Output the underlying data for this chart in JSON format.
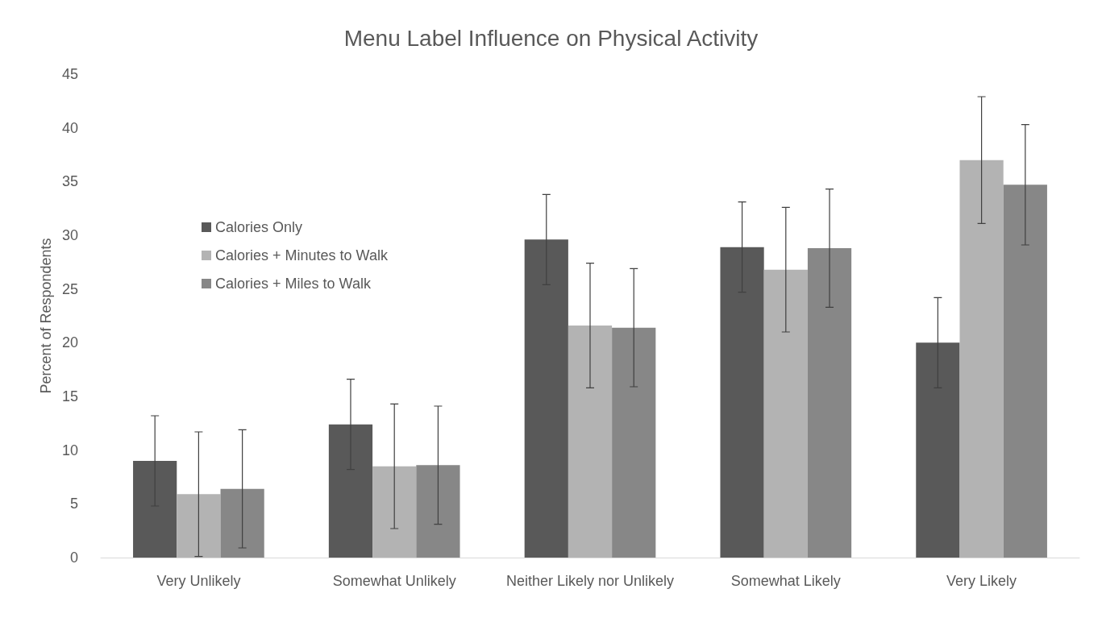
{
  "chart_data": {
    "type": "bar",
    "title": "Menu Label Influence on Physical Activity",
    "ylabel": "Percent of Respondents",
    "categories": [
      "Very Unlikely",
      "Somewhat Unlikely",
      "Neither Likely nor Unlikely",
      "Somewhat Likely",
      "Very Likely"
    ],
    "series": [
      {
        "name": "Calories Only",
        "color": "#595959",
        "values": [
          9.0,
          12.4,
          29.6,
          28.9,
          20.0
        ],
        "errors": [
          4.2,
          4.2,
          4.2,
          4.2,
          4.2
        ]
      },
      {
        "name": "Calories + Minutes to Walk",
        "color": "#b3b3b3",
        "values": [
          5.9,
          8.5,
          21.6,
          26.8,
          37.0
        ],
        "errors": [
          5.8,
          5.8,
          5.8,
          5.8,
          5.9
        ]
      },
      {
        "name": "Calories + Miles to Walk",
        "color": "#878787",
        "values": [
          6.4,
          8.6,
          21.4,
          28.8,
          34.7
        ],
        "errors": [
          5.5,
          5.5,
          5.5,
          5.5,
          5.6
        ]
      }
    ],
    "ylim": [
      0,
      45
    ],
    "yticks": [
      0,
      5,
      10,
      15,
      20,
      25,
      30,
      35,
      40,
      45
    ],
    "grid": false,
    "legend": "left"
  }
}
